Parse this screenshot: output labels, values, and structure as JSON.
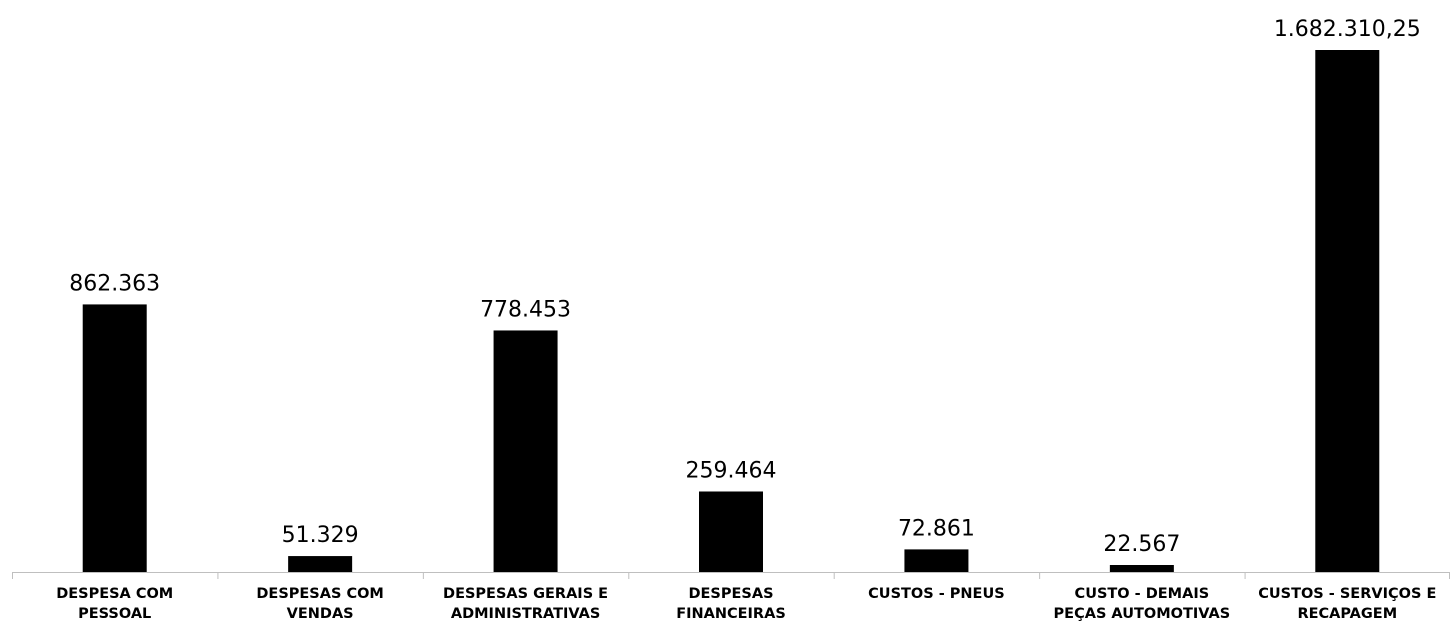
{
  "chart_data": {
    "type": "bar",
    "title": "",
    "xlabel": "",
    "ylabel": "",
    "ylim": [
      0,
      1682310.25
    ],
    "grid": false,
    "legend": "none",
    "bar_color": "#000000",
    "categories": [
      [
        "DESPESA COM",
        "PESSOAL"
      ],
      [
        "DESPESAS COM",
        "VENDAS"
      ],
      [
        "DESPESAS GERAIS E",
        "ADMINISTRATIVAS"
      ],
      [
        "DESPESAS",
        "FINANCEIRAS"
      ],
      [
        "CUSTOS -  PNEUS"
      ],
      [
        "CUSTO - DEMAIS",
        "PEÇAS AUTOMOTIVAS"
      ],
      [
        "CUSTOS - SERVIÇOS E",
        "RECAPAGEM"
      ]
    ],
    "values": [
      862363,
      51329,
      778453,
      259464,
      72861,
      22567,
      1682310.25
    ],
    "data_labels": [
      "862.363",
      "51.329",
      "778.453",
      "259.464",
      "72.861",
      "22.567",
      "1.682.310,25"
    ]
  }
}
